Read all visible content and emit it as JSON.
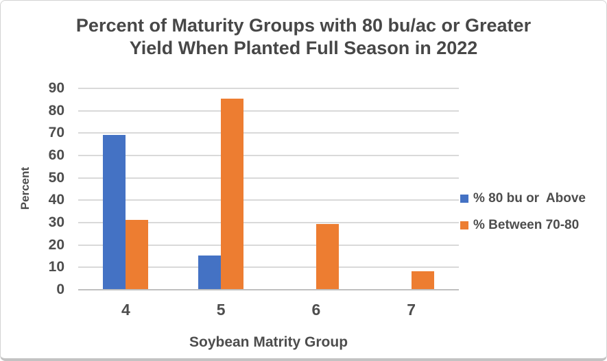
{
  "chart_data": {
    "type": "bar",
    "title": "Percent of Maturity Groups with 80 bu/ac or Greater Yield When Planted Full Season in 2022",
    "title_lines": [
      "Percent of Maturity Groups with 80 bu/ac or Greater",
      "Yield When Planted Full Season in 2022"
    ],
    "categories": [
      "4",
      "5",
      "6",
      "7"
    ],
    "series": [
      {
        "name": "% 80 bu or  Above",
        "color": "#4472C4",
        "values": [
          69,
          15,
          0,
          0
        ]
      },
      {
        "name": "% Between 70-80",
        "color": "#ED7D31",
        "values": [
          31,
          85,
          29,
          8
        ]
      }
    ],
    "xlabel": "Soybean Matrity Group",
    "ylabel": "Percent",
    "ylim": [
      0,
      90
    ],
    "ytick_step": 10,
    "grid": true,
    "legend_position": "right"
  },
  "colors": {
    "series_blue": "#4472C4",
    "series_orange": "#ED7D31",
    "gridline": "#d9d9d9",
    "axis_line": "#bfbfbf",
    "text": "#4d4d4d"
  }
}
